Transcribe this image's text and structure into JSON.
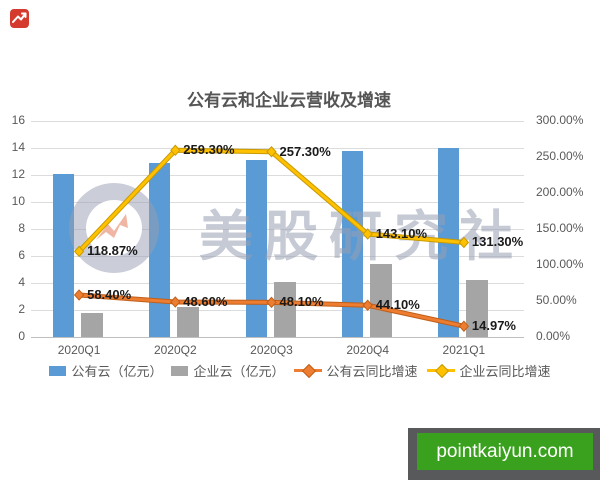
{
  "brand_logo": {
    "color": "#d43a2e",
    "arrow_color": "#ffffff"
  },
  "watermark": {
    "text": "美股研究社",
    "text_color": "rgba(152,158,178,0.55)",
    "ring_color": "rgba(152,158,178,0.50)",
    "arrow_color": "rgba(228,120,88,0.55)"
  },
  "footer_badge": {
    "text": "pointkaiyun.com",
    "bg_color": "#3aa11f",
    "frame_color": "#58595b",
    "text_color": "#ffffff"
  },
  "chart_data": {
    "type": "combo-bar-line",
    "title": "公有云和企业云营收及增速",
    "categories": [
      "2020Q1",
      "2020Q2",
      "2020Q3",
      "2020Q4",
      "2021Q1"
    ],
    "bar_series": [
      {
        "name": "公有云（亿元）",
        "color": "#5b9bd5",
        "axis": "left",
        "values": [
          12.1,
          12.9,
          13.1,
          13.8,
          14.0
        ]
      },
      {
        "name": "企业云（亿元）",
        "color": "#a5a5a5",
        "axis": "left",
        "values": [
          1.8,
          2.2,
          4.1,
          5.4,
          4.2
        ]
      }
    ],
    "line_series": [
      {
        "name": "公有云同比增速",
        "color": "#ed7d31",
        "edge_color": "#c05f19",
        "axis": "right",
        "values": [
          58.4,
          48.6,
          48.1,
          44.1,
          14.97
        ],
        "labels": [
          "58.40%",
          "48.60%",
          "48.10%",
          "44.10%",
          "14.97%"
        ]
      },
      {
        "name": "企业云同比增速",
        "color": "#ffc000",
        "edge_color": "#c79a00",
        "axis": "right",
        "values": [
          118.87,
          259.3,
          257.3,
          143.1,
          131.3
        ],
        "labels": [
          "118.87%",
          "259.30%",
          "257.30%",
          "143.10%",
          "131.30%"
        ]
      }
    ],
    "left_axis": {
      "min": 0,
      "max": 16,
      "step": 2,
      "ticks": [
        "16",
        "14",
        "12",
        "10",
        "8",
        "6",
        "4",
        "2",
        "0"
      ]
    },
    "right_axis": {
      "min": 0,
      "max": 300,
      "step": 50,
      "ticks": [
        "300.00%",
        "250.00%",
        "200.00%",
        "150.00%",
        "100.00%",
        "50.00%",
        "0.00%"
      ]
    },
    "grid": true,
    "legend_position": "bottom"
  }
}
